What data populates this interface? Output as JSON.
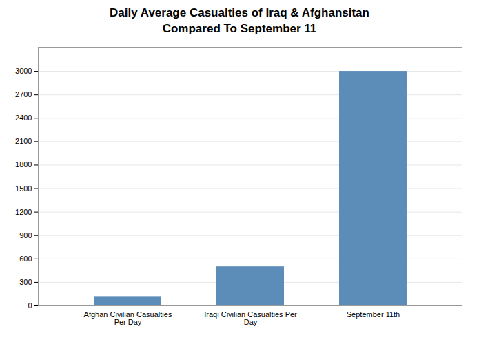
{
  "chart_data": {
    "type": "bar",
    "title": "Daily Average Casualties of Iraq & Afghansitan\nCompared To September 11",
    "categories": [
      "Afghan Civilian Casualties\nPer Day",
      "Iraqi Civilian Casualties Per\nDay",
      "September 11th"
    ],
    "values": [
      120,
      500,
      3000
    ],
    "color": "#5B8DB8",
    "ylim": [
      0,
      3300
    ],
    "yticks": [
      0,
      300,
      600,
      900,
      1200,
      1500,
      1800,
      2100,
      2400,
      2700,
      3000
    ],
    "grid": true
  }
}
